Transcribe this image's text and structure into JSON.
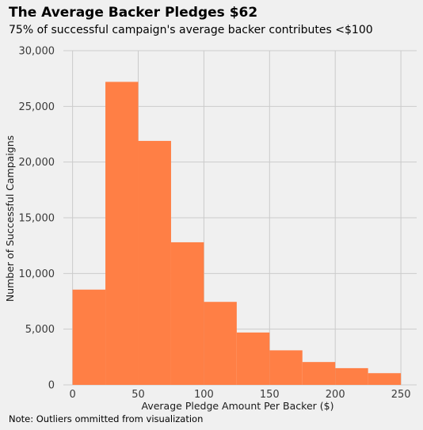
{
  "chart_data": {
    "type": "bar",
    "title": "The Average Backer Pledges $62",
    "subtitle": "75% of successful campaign's average backer contributes <$100",
    "xlabel": "Average Pledge Amount Per Backer ($)",
    "ylabel": "Number of Successful Campaigns",
    "note": "Note: Outliers ommitted from visualization",
    "bins": [
      {
        "start": 0,
        "end": 25,
        "value": 8550
      },
      {
        "start": 25,
        "end": 50,
        "value": 27200
      },
      {
        "start": 50,
        "end": 75,
        "value": 21900
      },
      {
        "start": 75,
        "end": 100,
        "value": 12800
      },
      {
        "start": 100,
        "end": 125,
        "value": 7450
      },
      {
        "start": 125,
        "end": 150,
        "value": 4700
      },
      {
        "start": 150,
        "end": 175,
        "value": 3100
      },
      {
        "start": 175,
        "end": 200,
        "value": 2050
      },
      {
        "start": 200,
        "end": 225,
        "value": 1500
      },
      {
        "start": 225,
        "end": 250,
        "value": 1050
      }
    ],
    "xlim": [
      -7,
      262
    ],
    "ylim": [
      0,
      30000
    ],
    "x_ticks": [
      {
        "value": 0,
        "label": "0"
      },
      {
        "value": 50,
        "label": "50"
      },
      {
        "value": 100,
        "label": "100"
      },
      {
        "value": 150,
        "label": "150"
      },
      {
        "value": 200,
        "label": "200"
      },
      {
        "value": 250,
        "label": "250"
      }
    ],
    "y_ticks": [
      {
        "value": 0,
        "label": "0"
      },
      {
        "value": 5000,
        "label": "5,000"
      },
      {
        "value": 10000,
        "label": "10,000"
      },
      {
        "value": 15000,
        "label": "15,000"
      },
      {
        "value": 20000,
        "label": "20,000"
      },
      {
        "value": 25000,
        "label": "25,000"
      },
      {
        "value": 30000,
        "label": "30,000"
      }
    ],
    "grid": true,
    "bar_color": "#ff7f45",
    "background_color": "#f0f0f0",
    "grid_color": "#cbcbcb"
  }
}
